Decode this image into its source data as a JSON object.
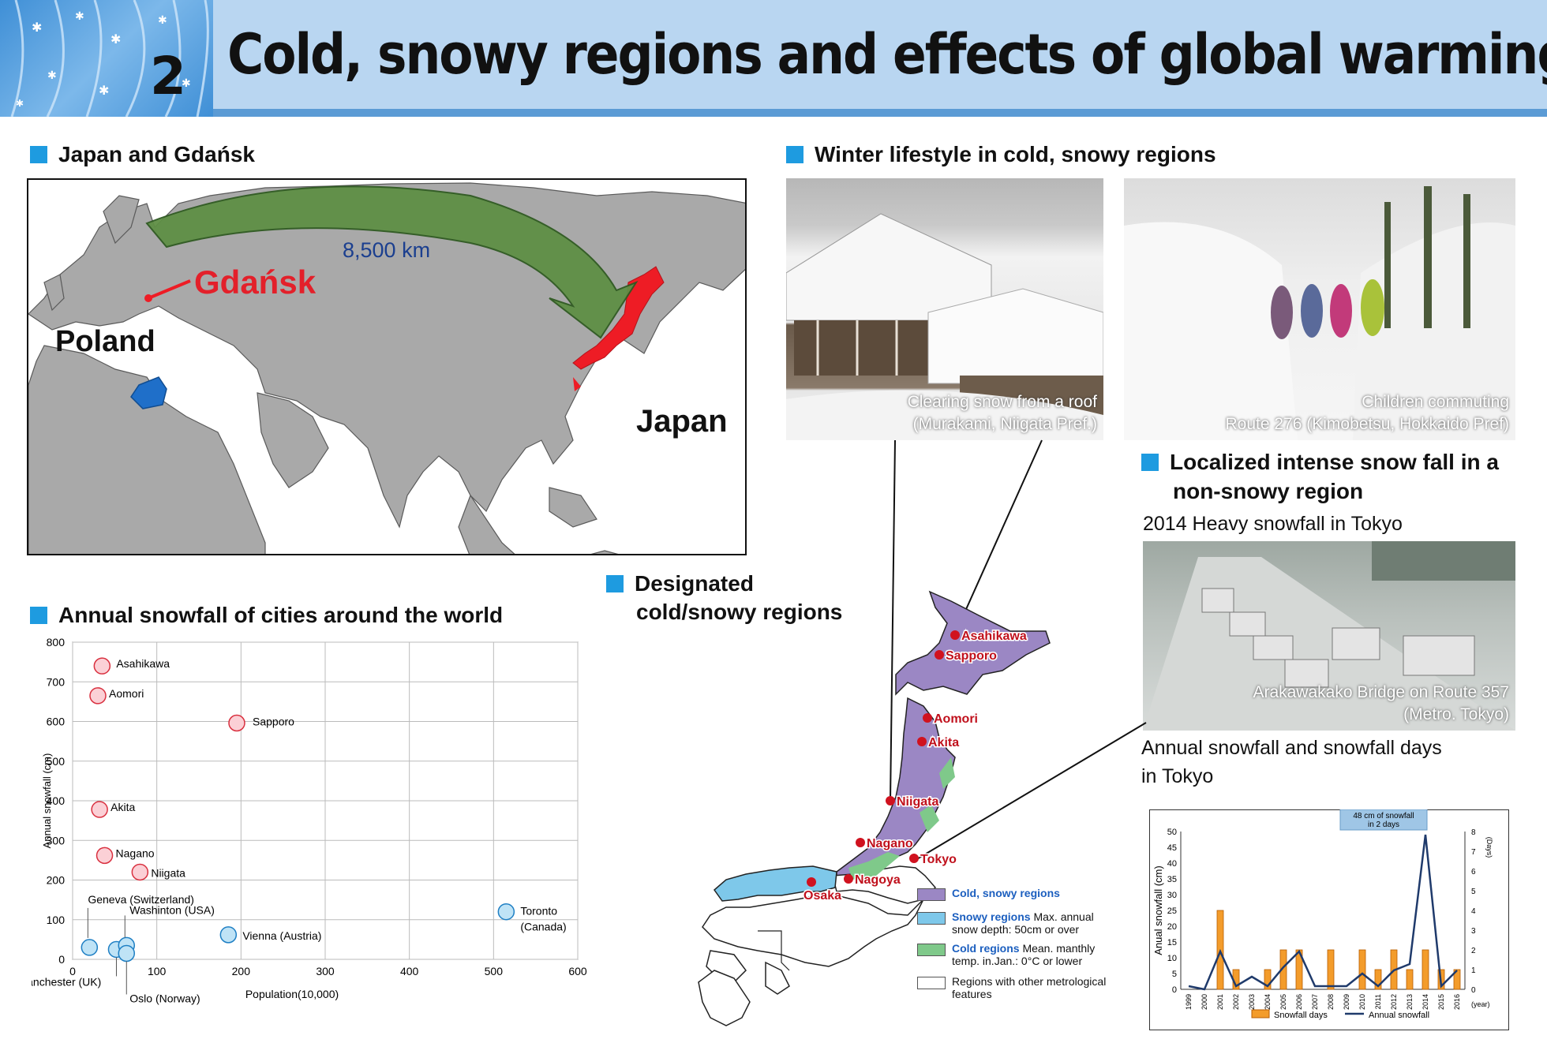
{
  "header": {
    "number": "2",
    "title": "Cold, snowy regions and effects of global warming in Japan"
  },
  "sections": {
    "japan_gdansk": "Japan and Gdańsk",
    "winter_lifestyle": "Winter lifestyle in cold, snowy regions",
    "localized_1": "Localized intense snow fall in a",
    "localized_2": "non-snowy region",
    "designated_1": "Designated",
    "designated_2": "cold/snowy regions",
    "annual_snowfall": "Annual snowfall of cities around the world"
  },
  "world_map": {
    "distance": "8,500 km",
    "city": "Gdańsk",
    "country1": "Poland",
    "country2": "Japan"
  },
  "photos": {
    "roof_caption_1": "Clearing snow from a roof",
    "roof_caption_2": "(Murakami, Niigata Pref.)",
    "children_caption_1": "Children commuting",
    "children_caption_2": "Route 276 (Kimobetsu, Hokkaido Pref)",
    "tokyo_heading": "2014 Heavy snowfall in Tokyo",
    "bridge_caption_1": "Arakawakako Bridge on Route 357",
    "bridge_caption_2": "(Metro. Tokyo)"
  },
  "tokyo_text": {
    "line1": "Annual snowfall and snowfall days",
    "line2": "in Tokyo"
  },
  "japan_map": {
    "cities": [
      {
        "name": "Asahikawa"
      },
      {
        "name": "Sapporo"
      },
      {
        "name": "Aomori"
      },
      {
        "name": "Akita"
      },
      {
        "name": "Niigata"
      },
      {
        "name": "Nagano"
      },
      {
        "name": "Tokyo"
      },
      {
        "name": "Nagoya"
      },
      {
        "name": "Osaka"
      }
    ],
    "legend": [
      {
        "title": "Cold, snowy regions",
        "desc": "",
        "color": "#9b87c4"
      },
      {
        "title": "Snowy regions",
        "desc": "Max. annual snow depth: 50cm or over",
        "color": "#7ec8ea"
      },
      {
        "title": "Cold regions",
        "desc": "Mean. manthly temp. in.Jan.: 0°C or lower",
        "color": "#7fc98a"
      },
      {
        "title": "",
        "desc": "Regions with other metrological features",
        "color": "#ffffff"
      }
    ]
  },
  "chart_data": [
    {
      "type": "scatter",
      "title": "",
      "xlabel": "Population(10,000)",
      "ylabel": "Annual snowfall (cm)",
      "xlim": [
        0,
        600
      ],
      "ylim": [
        0,
        800
      ],
      "xticks": [
        0,
        100,
        200,
        300,
        400,
        500,
        600
      ],
      "yticks": [
        0,
        100,
        200,
        300,
        400,
        500,
        600,
        700,
        800
      ],
      "grid": true,
      "points": [
        {
          "label": "Asahikawa",
          "x": 35,
          "y": 740,
          "group": "japan"
        },
        {
          "label": "Aomori",
          "x": 30,
          "y": 665,
          "group": "japan"
        },
        {
          "label": "Sapporo",
          "x": 195,
          "y": 596,
          "group": "japan"
        },
        {
          "label": "Akita",
          "x": 32,
          "y": 378,
          "group": "japan"
        },
        {
          "label": "Nagano",
          "x": 38,
          "y": 262,
          "group": "japan"
        },
        {
          "label": "Niigata",
          "x": 80,
          "y": 220,
          "group": "japan"
        },
        {
          "label": "Geneva (Switzerland)",
          "x": 20,
          "y": 30,
          "group": "world"
        },
        {
          "label": "Manchester (UK)",
          "x": 52,
          "y": 25,
          "group": "world"
        },
        {
          "label": "Washinton (USA)",
          "x": 64,
          "y": 35,
          "group": "world"
        },
        {
          "label": "Oslo (Norway)",
          "x": 64,
          "y": 15,
          "group": "world"
        },
        {
          "label": "Vienna (Austria)",
          "x": 185,
          "y": 62,
          "group": "world"
        },
        {
          "label": "Toronto (Canada)",
          "x": 515,
          "y": 120,
          "group": "world"
        }
      ]
    },
    {
      "type": "bar+line",
      "title": "",
      "annotation": "48 cm of snowfall in 2 days",
      "ylabel": "Anual snowfall (cm)",
      "y2label": "(Days)",
      "xlabel": "(year)",
      "ylim": [
        0,
        50
      ],
      "yticks": [
        0,
        5,
        10,
        15,
        20,
        25,
        30,
        35,
        40,
        45,
        50
      ],
      "y2lim": [
        0,
        8
      ],
      "y2ticks": [
        0,
        1,
        2,
        3,
        4,
        5,
        6,
        7,
        8
      ],
      "categories": [
        "1999",
        "2000",
        "2001",
        "2002",
        "2003",
        "2004",
        "2005",
        "2006",
        "2007",
        "2008",
        "2009",
        "2010",
        "2011",
        "2012",
        "2013",
        "2014",
        "2015",
        "2016"
      ],
      "series": [
        {
          "name": "Snowfall days",
          "type": "bar",
          "axis": "right",
          "color": "#f39c2b",
          "values": [
            0,
            0,
            4,
            1,
            0,
            1,
            2,
            2,
            0,
            2,
            0,
            2,
            1,
            2,
            1,
            2,
            1,
            1
          ]
        },
        {
          "name": "Annual snowfall",
          "type": "line",
          "axis": "left",
          "color": "#1f3a6b",
          "values": [
            1,
            0,
            12,
            1,
            4,
            1,
            7,
            12,
            1,
            1,
            1,
            5,
            1,
            6,
            8,
            49,
            1,
            6
          ]
        }
      ]
    }
  ]
}
